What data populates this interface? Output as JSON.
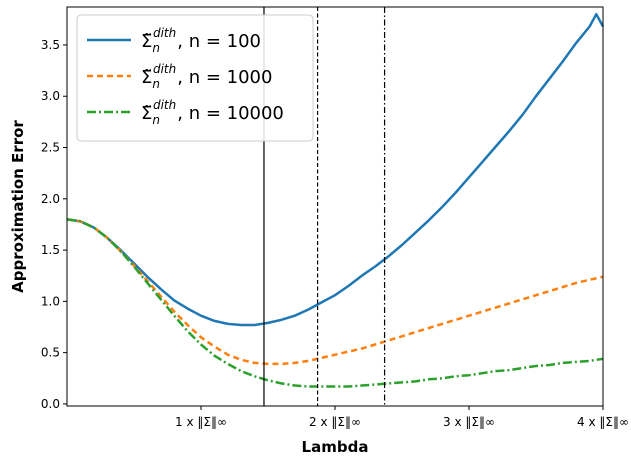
{
  "chart_data": {
    "type": "line",
    "title": "",
    "xlabel": "Lambda",
    "ylabel": "Approximation Error",
    "xlim": [
      0,
      4
    ],
    "ylim": [
      -0.02,
      3.87
    ],
    "x_ticks": [
      {
        "value": 1,
        "label": "1 x ‖Σ‖∞"
      },
      {
        "value": 2,
        "label": "2 x ‖Σ‖∞"
      },
      {
        "value": 3,
        "label": "3 x ‖Σ‖∞"
      },
      {
        "value": 4,
        "label": "4 x ‖Σ‖∞"
      }
    ],
    "y_ticks": [
      {
        "value": 0.0,
        "label": "0.0"
      },
      {
        "value": 0.5,
        "label": "0.5"
      },
      {
        "value": 1.0,
        "label": "1.0"
      },
      {
        "value": 1.5,
        "label": "1.5"
      },
      {
        "value": 2.0,
        "label": "2.0"
      },
      {
        "value": 2.5,
        "label": "2.5"
      },
      {
        "value": 3.0,
        "label": "3.0"
      },
      {
        "value": 3.5,
        "label": "3.5"
      }
    ],
    "grid": false,
    "legend_position": "top-left",
    "vertical_lines": [
      {
        "x": 1.47,
        "style": "solid"
      },
      {
        "x": 1.87,
        "style": "dashed"
      },
      {
        "x": 2.37,
        "style": "dashdot"
      }
    ],
    "series": [
      {
        "name": "Σ̃n^dith, n = 100",
        "legend_main": "Σ̃",
        "legend_sub": "n",
        "legend_sup": "dith",
        "legend_n": ", n = 100",
        "color": "#1f77b4",
        "dash": "solid",
        "x": [
          0.0,
          0.1,
          0.2,
          0.3,
          0.4,
          0.5,
          0.6,
          0.7,
          0.8,
          0.9,
          1.0,
          1.1,
          1.2,
          1.3,
          1.4,
          1.5,
          1.6,
          1.7,
          1.8,
          1.9,
          2.0,
          2.1,
          2.2,
          2.3,
          2.4,
          2.5,
          2.6,
          2.7,
          2.8,
          2.9,
          3.0,
          3.1,
          3.2,
          3.3,
          3.4,
          3.5,
          3.6,
          3.7,
          3.8,
          3.9,
          3.95,
          4.0
        ],
        "y": [
          1.8,
          1.78,
          1.72,
          1.62,
          1.5,
          1.37,
          1.24,
          1.12,
          1.01,
          0.93,
          0.86,
          0.81,
          0.78,
          0.77,
          0.77,
          0.79,
          0.82,
          0.86,
          0.92,
          0.99,
          1.06,
          1.15,
          1.25,
          1.34,
          1.44,
          1.55,
          1.67,
          1.79,
          1.92,
          2.06,
          2.21,
          2.36,
          2.51,
          2.66,
          2.82,
          3.0,
          3.17,
          3.34,
          3.52,
          3.68,
          3.8,
          3.68
        ]
      },
      {
        "name": "Σ̃n^dith, n = 1000",
        "legend_main": "Σ̃",
        "legend_sub": "n",
        "legend_sup": "dith",
        "legend_n": ", n = 1000",
        "color": "#ff7f0e",
        "dash": "dashed",
        "x": [
          0.0,
          0.1,
          0.2,
          0.3,
          0.4,
          0.5,
          0.6,
          0.7,
          0.8,
          0.9,
          1.0,
          1.1,
          1.2,
          1.3,
          1.4,
          1.5,
          1.6,
          1.7,
          1.8,
          1.9,
          2.0,
          2.1,
          2.2,
          2.3,
          2.4,
          2.5,
          2.6,
          2.7,
          2.8,
          2.9,
          3.0,
          3.1,
          3.2,
          3.3,
          3.4,
          3.5,
          3.6,
          3.7,
          3.8,
          3.9,
          4.0
        ],
        "y": [
          1.8,
          1.78,
          1.72,
          1.62,
          1.49,
          1.35,
          1.2,
          1.05,
          0.9,
          0.77,
          0.65,
          0.56,
          0.48,
          0.43,
          0.4,
          0.39,
          0.39,
          0.4,
          0.42,
          0.45,
          0.48,
          0.51,
          0.54,
          0.58,
          0.62,
          0.66,
          0.7,
          0.74,
          0.78,
          0.82,
          0.86,
          0.9,
          0.94,
          0.98,
          1.02,
          1.06,
          1.1,
          1.14,
          1.18,
          1.21,
          1.24
        ]
      },
      {
        "name": "Σ̃n^dith, n = 10000",
        "legend_main": "Σ̃",
        "legend_sub": "n",
        "legend_sup": "dith",
        "legend_n": ", n = 10000",
        "color": "#2ca02c",
        "dash": "dashdot",
        "x": [
          0.0,
          0.1,
          0.2,
          0.3,
          0.4,
          0.5,
          0.6,
          0.7,
          0.8,
          0.9,
          1.0,
          1.1,
          1.2,
          1.3,
          1.4,
          1.5,
          1.6,
          1.7,
          1.8,
          1.9,
          2.0,
          2.1,
          2.2,
          2.3,
          2.4,
          2.5,
          2.6,
          2.7,
          2.8,
          2.9,
          3.0,
          3.1,
          3.2,
          3.3,
          3.4,
          3.5,
          3.6,
          3.7,
          3.8,
          3.9,
          4.0
        ],
        "y": [
          1.8,
          1.78,
          1.72,
          1.62,
          1.49,
          1.34,
          1.18,
          1.02,
          0.86,
          0.71,
          0.58,
          0.47,
          0.39,
          0.32,
          0.27,
          0.23,
          0.2,
          0.18,
          0.17,
          0.17,
          0.17,
          0.17,
          0.18,
          0.19,
          0.2,
          0.21,
          0.22,
          0.24,
          0.25,
          0.27,
          0.28,
          0.3,
          0.32,
          0.33,
          0.35,
          0.37,
          0.38,
          0.4,
          0.41,
          0.42,
          0.44
        ]
      }
    ]
  }
}
